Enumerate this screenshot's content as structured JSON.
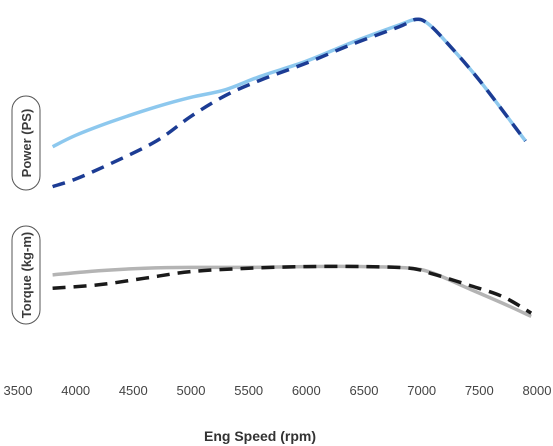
{
  "chart_data": {
    "type": "line",
    "xlabel": "Eng Speed (rpm)",
    "x_ticks": [
      "3500",
      "4000",
      "4500",
      "5000",
      "5500",
      "6000",
      "6500",
      "7000",
      "7500",
      "8000"
    ],
    "xlim": [
      3500,
      8000
    ],
    "panels": [
      {
        "ylabel": "Power (PS)",
        "series": [
          {
            "style": "solid",
            "color": "#8dc8ee",
            "x": [
              3800,
              4000,
              4300,
              4700,
              5000,
              5300,
              5600,
              6000,
              6400,
              6800,
              6950,
              7050,
              7200,
              7500,
              7900
            ],
            "values": [
              0.27,
              0.33,
              0.4,
              0.48,
              0.53,
              0.57,
              0.64,
              0.72,
              0.82,
              0.91,
              0.94,
              0.92,
              0.83,
              0.62,
              0.3
            ]
          },
          {
            "style": "dashed",
            "color": "#1c3c94",
            "x": [
              3800,
              4000,
              4300,
              4700,
              5000,
              5300,
              5600,
              6000,
              6400,
              6800,
              6950,
              7050,
              7200,
              7500,
              7900
            ],
            "values": [
              0.06,
              0.1,
              0.18,
              0.3,
              0.43,
              0.54,
              0.62,
              0.71,
              0.81,
              0.9,
              0.94,
              0.92,
              0.83,
              0.62,
              0.3
            ]
          }
        ]
      },
      {
        "ylabel": "Torque (kg-m)",
        "series": [
          {
            "style": "solid",
            "color": "#b4b4b4",
            "x": [
              3800,
              4200,
              4600,
              5000,
              5500,
              6000,
              6500,
              6900,
              7100,
              7400,
              7700,
              7950
            ],
            "values": [
              0.64,
              0.69,
              0.72,
              0.73,
              0.73,
              0.74,
              0.74,
              0.72,
              0.66,
              0.48,
              0.3,
              0.14
            ]
          },
          {
            "style": "dashed",
            "color": "#1a1a1a",
            "x": [
              3800,
              4200,
              4600,
              5000,
              5500,
              6000,
              6500,
              6900,
              7100,
              7400,
              7700,
              7950
            ],
            "values": [
              0.48,
              0.52,
              0.6,
              0.68,
              0.72,
              0.74,
              0.74,
              0.72,
              0.65,
              0.52,
              0.38,
              0.18
            ]
          }
        ]
      }
    ]
  }
}
